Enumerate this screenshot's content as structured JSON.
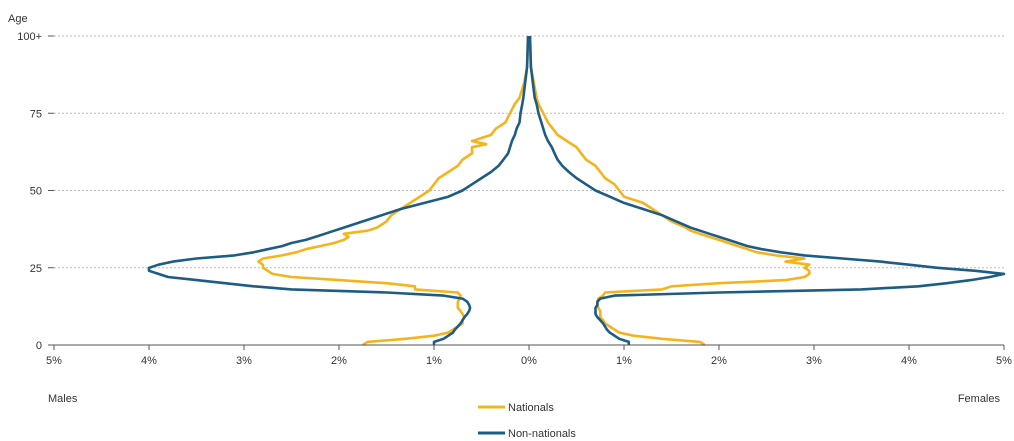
{
  "chart_data": {
    "type": "line",
    "title": "",
    "ylabel": "Age",
    "left_label": "Males",
    "right_label": "Females",
    "x_ticks": [
      "5%",
      "4%",
      "3%",
      "2%",
      "1%",
      "0%",
      "1%",
      "2%",
      "3%",
      "4%",
      "5%"
    ],
    "y_ticks": [
      "0",
      "25",
      "50",
      "75",
      "100+"
    ],
    "xlim": [
      -5,
      5
    ],
    "ylim": [
      0,
      100
    ],
    "grid": "horizontal dashed",
    "legend_position": "bottom-center",
    "colors": {
      "nationals": "#f5b41e",
      "non_nationals": "#1d5c84",
      "grid": "#bbbbbb",
      "axis": "#555555"
    },
    "series": [
      {
        "name": "Nationals",
        "male": [
          [
            0,
            1.75
          ],
          [
            1,
            1.7
          ],
          [
            2,
            1.3
          ],
          [
            3,
            1.0
          ],
          [
            4,
            0.85
          ],
          [
            5,
            0.8
          ],
          [
            6,
            0.75
          ],
          [
            7,
            0.7
          ],
          [
            8,
            0.7
          ],
          [
            9,
            0.68
          ],
          [
            10,
            0.7
          ],
          [
            11,
            0.72
          ],
          [
            12,
            0.75
          ],
          [
            13,
            0.75
          ],
          [
            14,
            0.75
          ],
          [
            15,
            0.73
          ],
          [
            16,
            0.72
          ],
          [
            17,
            0.75
          ],
          [
            18,
            1.2
          ],
          [
            19,
            1.2
          ],
          [
            20,
            1.5
          ],
          [
            21,
            2.0
          ],
          [
            22,
            2.5
          ],
          [
            23,
            2.7
          ],
          [
            24,
            2.75
          ],
          [
            25,
            2.8
          ],
          [
            26,
            2.8
          ],
          [
            27,
            2.85
          ],
          [
            28,
            2.8
          ],
          [
            29,
            2.6
          ],
          [
            30,
            2.45
          ],
          [
            31,
            2.35
          ],
          [
            32,
            2.2
          ],
          [
            33,
            2.05
          ],
          [
            34,
            1.95
          ],
          [
            35,
            1.9
          ],
          [
            36,
            1.95
          ],
          [
            37,
            1.7
          ],
          [
            38,
            1.6
          ],
          [
            39,
            1.55
          ],
          [
            40,
            1.5
          ],
          [
            42,
            1.45
          ],
          [
            44,
            1.35
          ],
          [
            46,
            1.25
          ],
          [
            48,
            1.15
          ],
          [
            50,
            1.05
          ],
          [
            52,
            1.0
          ],
          [
            54,
            0.95
          ],
          [
            56,
            0.85
          ],
          [
            58,
            0.75
          ],
          [
            60,
            0.7
          ],
          [
            62,
            0.6
          ],
          [
            64,
            0.6
          ],
          [
            65,
            0.45
          ],
          [
            66,
            0.6
          ],
          [
            68,
            0.4
          ],
          [
            70,
            0.35
          ],
          [
            72,
            0.25
          ],
          [
            75,
            0.2
          ],
          [
            78,
            0.15
          ],
          [
            80,
            0.1
          ],
          [
            85,
            0.05
          ],
          [
            90,
            0.02
          ],
          [
            100,
            0.01
          ]
        ],
        "female": [
          [
            0,
            1.85
          ],
          [
            1,
            1.8
          ],
          [
            2,
            1.4
          ],
          [
            3,
            1.1
          ],
          [
            4,
            0.95
          ],
          [
            5,
            0.9
          ],
          [
            6,
            0.85
          ],
          [
            7,
            0.8
          ],
          [
            8,
            0.78
          ],
          [
            9,
            0.75
          ],
          [
            10,
            0.75
          ],
          [
            11,
            0.75
          ],
          [
            12,
            0.73
          ],
          [
            13,
            0.72
          ],
          [
            14,
            0.72
          ],
          [
            15,
            0.73
          ],
          [
            16,
            0.78
          ],
          [
            17,
            0.8
          ],
          [
            18,
            1.4
          ],
          [
            19,
            1.5
          ],
          [
            20,
            2.0
          ],
          [
            21,
            2.7
          ],
          [
            22,
            2.9
          ],
          [
            23,
            2.95
          ],
          [
            24,
            2.95
          ],
          [
            25,
            2.9
          ],
          [
            26,
            2.95
          ],
          [
            27,
            2.7
          ],
          [
            28,
            2.9
          ],
          [
            29,
            2.6
          ],
          [
            30,
            2.4
          ],
          [
            31,
            2.3
          ],
          [
            32,
            2.2
          ],
          [
            33,
            2.1
          ],
          [
            34,
            2.0
          ],
          [
            35,
            1.9
          ],
          [
            36,
            1.8
          ],
          [
            37,
            1.7
          ],
          [
            38,
            1.65
          ],
          [
            40,
            1.5
          ],
          [
            42,
            1.4
          ],
          [
            44,
            1.3
          ],
          [
            46,
            1.2
          ],
          [
            48,
            1.0
          ],
          [
            50,
            0.95
          ],
          [
            52,
            0.9
          ],
          [
            54,
            0.8
          ],
          [
            56,
            0.75
          ],
          [
            58,
            0.7
          ],
          [
            60,
            0.6
          ],
          [
            62,
            0.55
          ],
          [
            64,
            0.5
          ],
          [
            66,
            0.4
          ],
          [
            68,
            0.3
          ],
          [
            70,
            0.25
          ],
          [
            72,
            0.2
          ],
          [
            75,
            0.15
          ],
          [
            78,
            0.1
          ],
          [
            80,
            0.08
          ],
          [
            85,
            0.05
          ],
          [
            90,
            0.02
          ],
          [
            100,
            0.01
          ]
        ]
      },
      {
        "name": "Non-nationals",
        "male": [
          [
            0,
            1.0
          ],
          [
            1,
            1.0
          ],
          [
            2,
            0.9
          ],
          [
            3,
            0.85
          ],
          [
            4,
            0.8
          ],
          [
            5,
            0.78
          ],
          [
            6,
            0.75
          ],
          [
            7,
            0.72
          ],
          [
            8,
            0.7
          ],
          [
            9,
            0.68
          ],
          [
            10,
            0.65
          ],
          [
            11,
            0.63
          ],
          [
            12,
            0.62
          ],
          [
            13,
            0.63
          ],
          [
            14,
            0.65
          ],
          [
            15,
            0.7
          ],
          [
            16,
            0.9
          ],
          [
            17,
            1.5
          ],
          [
            18,
            2.5
          ],
          [
            19,
            2.9
          ],
          [
            20,
            3.2
          ],
          [
            21,
            3.5
          ],
          [
            22,
            3.8
          ],
          [
            23,
            3.9
          ],
          [
            24,
            4.0
          ],
          [
            25,
            4.0
          ],
          [
            26,
            3.9
          ],
          [
            27,
            3.75
          ],
          [
            28,
            3.5
          ],
          [
            29,
            3.1
          ],
          [
            30,
            2.9
          ],
          [
            31,
            2.75
          ],
          [
            32,
            2.6
          ],
          [
            33,
            2.5
          ],
          [
            34,
            2.35
          ],
          [
            35,
            2.25
          ],
          [
            36,
            2.15
          ],
          [
            37,
            2.05
          ],
          [
            38,
            1.95
          ],
          [
            40,
            1.75
          ],
          [
            42,
            1.55
          ],
          [
            44,
            1.35
          ],
          [
            46,
            1.1
          ],
          [
            48,
            0.85
          ],
          [
            50,
            0.7
          ],
          [
            52,
            0.6
          ],
          [
            54,
            0.5
          ],
          [
            56,
            0.4
          ],
          [
            58,
            0.32
          ],
          [
            60,
            0.27
          ],
          [
            62,
            0.22
          ],
          [
            64,
            0.2
          ],
          [
            66,
            0.18
          ],
          [
            68,
            0.15
          ],
          [
            70,
            0.13
          ],
          [
            72,
            0.1
          ],
          [
            75,
            0.09
          ],
          [
            78,
            0.07
          ],
          [
            80,
            0.06
          ],
          [
            85,
            0.04
          ],
          [
            90,
            0.02
          ],
          [
            100,
            0.01
          ]
        ],
        "female": [
          [
            0,
            1.05
          ],
          [
            1,
            1.05
          ],
          [
            2,
            0.95
          ],
          [
            3,
            0.9
          ],
          [
            4,
            0.85
          ],
          [
            5,
            0.82
          ],
          [
            6,
            0.8
          ],
          [
            7,
            0.78
          ],
          [
            8,
            0.75
          ],
          [
            9,
            0.72
          ],
          [
            10,
            0.7
          ],
          [
            11,
            0.7
          ],
          [
            12,
            0.7
          ],
          [
            13,
            0.72
          ],
          [
            14,
            0.72
          ],
          [
            15,
            0.75
          ],
          [
            16,
            0.9
          ],
          [
            17,
            2.0
          ],
          [
            18,
            3.5
          ],
          [
            19,
            4.1
          ],
          [
            20,
            4.4
          ],
          [
            21,
            4.65
          ],
          [
            22,
            4.85
          ],
          [
            23,
            5.0
          ],
          [
            24,
            4.7
          ],
          [
            25,
            4.3
          ],
          [
            26,
            4.0
          ],
          [
            27,
            3.7
          ],
          [
            28,
            3.3
          ],
          [
            29,
            2.9
          ],
          [
            30,
            2.65
          ],
          [
            31,
            2.45
          ],
          [
            32,
            2.3
          ],
          [
            33,
            2.2
          ],
          [
            34,
            2.1
          ],
          [
            35,
            2.0
          ],
          [
            36,
            1.9
          ],
          [
            37,
            1.8
          ],
          [
            38,
            1.7
          ],
          [
            40,
            1.55
          ],
          [
            42,
            1.4
          ],
          [
            44,
            1.2
          ],
          [
            46,
            1.0
          ],
          [
            48,
            0.85
          ],
          [
            50,
            0.7
          ],
          [
            52,
            0.6
          ],
          [
            54,
            0.5
          ],
          [
            56,
            0.42
          ],
          [
            58,
            0.35
          ],
          [
            60,
            0.3
          ],
          [
            62,
            0.27
          ],
          [
            64,
            0.24
          ],
          [
            66,
            0.2
          ],
          [
            68,
            0.17
          ],
          [
            70,
            0.15
          ],
          [
            72,
            0.13
          ],
          [
            75,
            0.1
          ],
          [
            78,
            0.08
          ],
          [
            80,
            0.06
          ],
          [
            85,
            0.04
          ],
          [
            90,
            0.02
          ],
          [
            100,
            0.01
          ]
        ]
      }
    ]
  }
}
